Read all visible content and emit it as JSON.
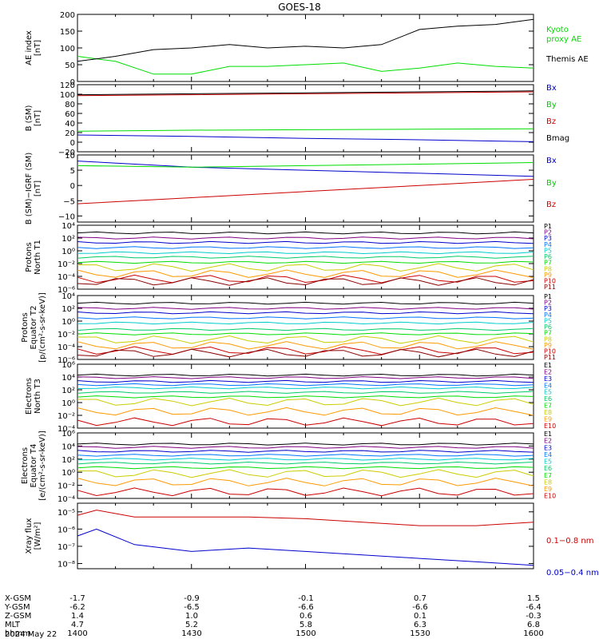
{
  "title": "GOES-18",
  "colors": {
    "black": "#000000",
    "green": "#00dd00",
    "blue": "#0000cc",
    "red": "#cc0000",
    "brightgreen": "#33ff33",
    "p_colors": [
      "#000000",
      "#800080",
      "#0000cc",
      "#0077ff",
      "#00cccc",
      "#00cc66",
      "#00dd00",
      "#cccc00",
      "#ff9900",
      "#cc0000",
      "#880000"
    ]
  },
  "ephemeris": {
    "labels": [
      "X-GSM",
      "Y-GSM",
      "Z-GSM",
      "MLT",
      "hhmm"
    ],
    "columns": [
      [
        "-1.7",
        "-6.2",
        "1.4",
        "4.7",
        "1400"
      ],
      [
        "-0.9",
        "-6.5",
        "1.0",
        "5.2",
        "1430"
      ],
      [
        "-0.1",
        "-6.6",
        "0.6",
        "5.8",
        "1500"
      ],
      [
        "0.7",
        "-6.6",
        "0.1",
        "6.3",
        "1530"
      ],
      [
        "1.5",
        "-6.4",
        "-0.3",
        "6.8",
        "1600"
      ]
    ],
    "date": "2024 May 22"
  },
  "chart_data": [
    {
      "type": "line",
      "ylabel": "AE index\n[nT]",
      "ylim": [
        0,
        200
      ],
      "yticks": [
        "0",
        "50",
        "100",
        "150",
        "200"
      ],
      "x": [
        1400,
        1410,
        1420,
        1430,
        1440,
        1450,
        1500,
        1510,
        1520,
        1530,
        1540,
        1550,
        1600
      ],
      "series": [
        {
          "name": "Kyoto proxy AE",
          "color_key": "green",
          "values": [
            75,
            60,
            22,
            22,
            45,
            45,
            50,
            55,
            30,
            40,
            55,
            45,
            40
          ]
        },
        {
          "name": "Themis AE",
          "color_key": "black",
          "values": [
            60,
            75,
            95,
            100,
            110,
            100,
            105,
            100,
            110,
            155,
            165,
            170,
            185
          ]
        }
      ],
      "legend_labels": [
        "Kyoto\nproxy AE",
        "Themis AE"
      ]
    },
    {
      "type": "line",
      "ylabel": "B (SM)\n[nT]",
      "ylim": [
        -20,
        120
      ],
      "yticks": [
        "−20",
        "0",
        "20",
        "40",
        "60",
        "80",
        "100",
        "120"
      ],
      "x": [
        1400,
        1430,
        1500,
        1530,
        1600
      ],
      "series": [
        {
          "name": "Bx",
          "color_key": "blue",
          "values": [
            15,
            12,
            8,
            5,
            1
          ]
        },
        {
          "name": "By",
          "color_key": "green",
          "values": [
            23,
            25,
            26,
            27,
            28
          ]
        },
        {
          "name": "Bz",
          "color_key": "red",
          "values": [
            97,
            99,
            101,
            103,
            105
          ]
        },
        {
          "name": "Bmag",
          "color_key": "black",
          "values": [
            99,
            101,
            103,
            105,
            107
          ]
        }
      ],
      "legend_labels": [
        "Bx",
        "By",
        "Bz",
        "Bmag"
      ]
    },
    {
      "type": "line",
      "ylabel": "B (SM)−IGRF (SM)\n[nT]",
      "ylim": [
        -12,
        10
      ],
      "yticks": [
        "−10",
        "−5",
        "0",
        "5",
        "10"
      ],
      "x": [
        1400,
        1430,
        1500,
        1530,
        1600
      ],
      "series": [
        {
          "name": "Bx",
          "color_key": "blue",
          "values": [
            8,
            6,
            5,
            4,
            3
          ]
        },
        {
          "name": "By",
          "color_key": "green",
          "values": [
            6.5,
            6,
            6.5,
            7,
            7.5
          ]
        },
        {
          "name": "Bz",
          "color_key": "red",
          "values": [
            -6,
            -4,
            -2,
            0,
            2
          ]
        }
      ],
      "legend_labels": [
        "Bx",
        "By",
        "Bz"
      ]
    },
    {
      "type": "line",
      "ylabel": "Protons\nNorth T1",
      "ylog": true,
      "ylim_exp": [
        -6,
        4
      ],
      "yticks": [
        "10⁻⁶",
        "10⁻⁴",
        "10⁻²",
        "10⁰",
        "10²",
        "10⁴"
      ],
      "legend_labels": [
        "P1",
        "P2",
        "P3",
        "P4",
        "P5",
        "P6",
        "P7",
        "P8",
        "P9",
        "P10",
        "P11"
      ],
      "log_levels": [
        2.8,
        2.0,
        1.3,
        0.5,
        -0.3,
        -1.0,
        -1.8,
        -2.6,
        -3.6,
        -4.4,
        -4.8
      ]
    },
    {
      "type": "line",
      "ylabel": "Protons\nEquator T2\n[p/(cm²-s-sr-keV)]",
      "ylog": true,
      "ylim_exp": [
        -6,
        4
      ],
      "yticks": [
        "10⁻⁶",
        "10⁻⁴",
        "10⁻²",
        "10⁰",
        "10²",
        "10⁴"
      ],
      "legend_labels": [
        "P1",
        "P2",
        "P3",
        "P4",
        "P5",
        "P6",
        "P7",
        "P8",
        "P9",
        "P10",
        "P11"
      ],
      "log_levels": [
        2.8,
        2.0,
        1.3,
        0.5,
        -0.3,
        -1.3,
        -2.0,
        -2.9,
        -3.8,
        -4.6,
        -5.0
      ]
    },
    {
      "type": "line",
      "ylabel": "Electrons\nNorth T3",
      "ylog": true,
      "ylim_exp": [
        -4,
        6
      ],
      "yticks": [
        "10⁻⁴",
        "10⁻²",
        "10⁰",
        "10²",
        "10⁴",
        "10⁶"
      ],
      "legend_labels": [
        "E1",
        "E2",
        "E3",
        "E4",
        "E5",
        "E6",
        "E7",
        "E8",
        "E9",
        "E10"
      ],
      "log_levels": [
        4.3,
        3.9,
        3.3,
        2.8,
        2.3,
        1.6,
        0.9,
        0.1,
        -1.4,
        -3.0
      ]
    },
    {
      "type": "line",
      "ylabel": "Electrons\nEquator T4\n[e/(cm²-s-sr-keV)]",
      "ylog": true,
      "ylim_exp": [
        -4,
        6
      ],
      "yticks": [
        "10⁻⁴",
        "10⁻²",
        "10⁰",
        "10²",
        "10⁴",
        "10⁶"
      ],
      "legend_labels": [
        "E1",
        "E2",
        "E3",
        "E4",
        "E5",
        "E6",
        "E7",
        "E8",
        "E9",
        "E10"
      ],
      "log_levels": [
        4.3,
        3.8,
        3.2,
        2.6,
        2.0,
        1.4,
        0.7,
        -0.2,
        -1.5,
        -3.0
      ]
    },
    {
      "type": "line",
      "ylabel": "Xray flux\n[W/m²]",
      "ylog": true,
      "ylim_exp": [
        -8.3,
        -4.5
      ],
      "yticks": [
        "10⁻⁸",
        "10⁻⁷",
        "10⁻⁶",
        "10⁻⁵"
      ],
      "x": [
        1400,
        1405,
        1415,
        1430,
        1445,
        1500,
        1515,
        1530,
        1545,
        1600
      ],
      "series": [
        {
          "name": "0.1-0.8 nm",
          "color_key": "red",
          "values_exp": [
            -5.2,
            -4.9,
            -5.3,
            -5.3,
            -5.3,
            -5.4,
            -5.6,
            -5.8,
            -5.8,
            -5.6
          ]
        },
        {
          "name": "0.05-0.4 nm",
          "color_key": "blue",
          "values_exp": [
            -6.4,
            -6.0,
            -6.9,
            -7.3,
            -7.1,
            -7.3,
            -7.5,
            -7.7,
            -7.9,
            -8.1
          ]
        }
      ],
      "legend_labels": [
        "0.1−0.8 nm",
        "0.05−0.4 nm"
      ]
    }
  ]
}
